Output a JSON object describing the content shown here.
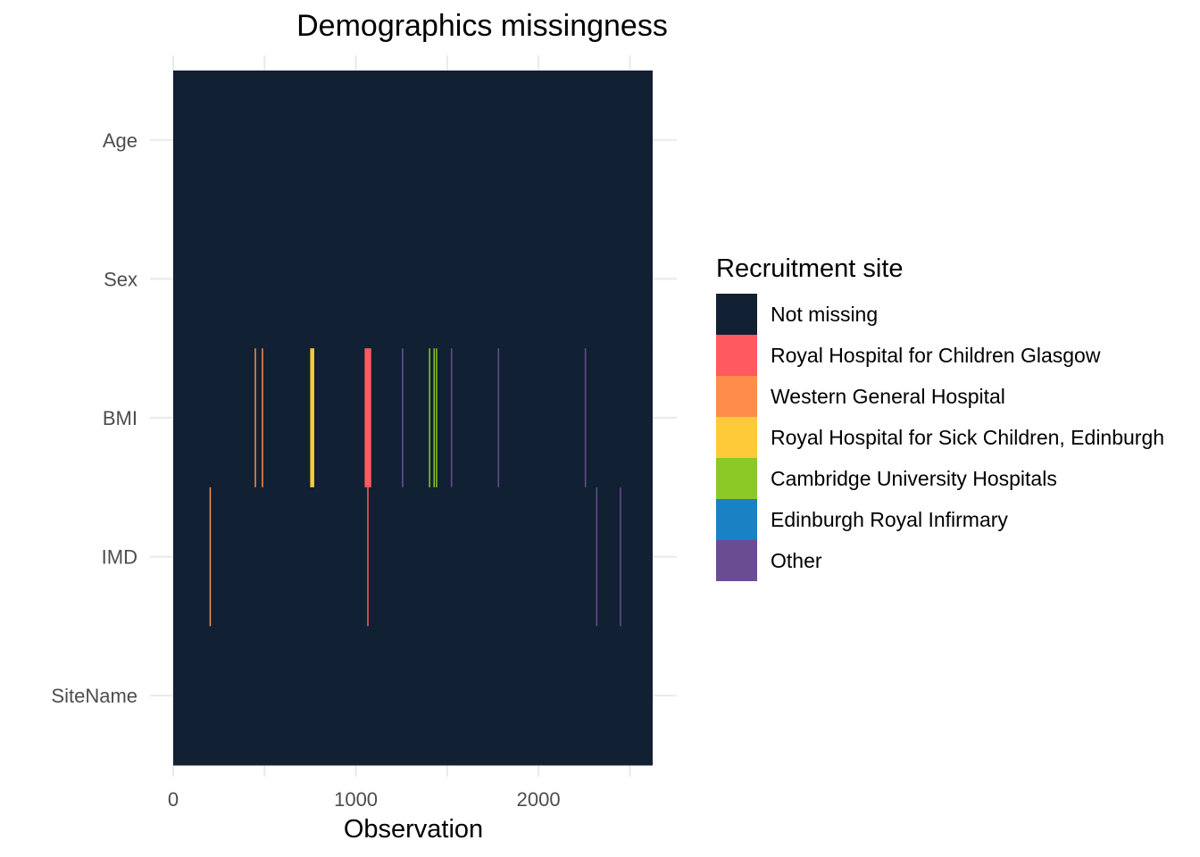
{
  "chart_data": {
    "type": "heatmap",
    "title": "Demographics missingness",
    "xlabel": "Observation",
    "ylabel": "",
    "xlim": [
      0,
      2625
    ],
    "x_ticks": [
      0,
      1000,
      2000
    ],
    "variables": [
      "Age",
      "Sex",
      "BMI",
      "IMD",
      "SiteName"
    ],
    "grid": true,
    "legend": {
      "title": "Recruitment site",
      "position": "right",
      "entries": [
        {
          "label": "Not missing",
          "color": "#112033"
        },
        {
          "label": "Royal Hospital for Children Glasgow",
          "color": "#ff5a5f"
        },
        {
          "label": "Western General Hospital",
          "color": "#ff8c4b"
        },
        {
          "label": "Royal Hospital for Sick Children, Edinburgh",
          "color": "#ffca3a"
        },
        {
          "label": "Cambridge University Hospitals",
          "color": "#8ac926"
        },
        {
          "label": "Edinburgh Royal Infirmary",
          "color": "#1982c4"
        },
        {
          "label": "Other",
          "color": "#6a4c93"
        }
      ]
    },
    "missing_segments": [
      {
        "variable": "BMI",
        "site": "Western General Hospital",
        "x_start": 446,
        "x_end": 452
      },
      {
        "variable": "BMI",
        "site": "Western General Hospital",
        "x_start": 485,
        "x_end": 491
      },
      {
        "variable": "BMI",
        "site": "Royal Hospital for Sick Children, Edinburgh",
        "x_start": 750,
        "x_end": 772
      },
      {
        "variable": "BMI",
        "site": "Royal Hospital for Children Glasgow",
        "x_start": 1048,
        "x_end": 1084
      },
      {
        "variable": "BMI",
        "site": "Other",
        "x_start": 1252,
        "x_end": 1260
      },
      {
        "variable": "BMI",
        "site": "Cambridge University Hospitals",
        "x_start": 1400,
        "x_end": 1406
      },
      {
        "variable": "BMI",
        "site": "Cambridge University Hospitals",
        "x_start": 1425,
        "x_end": 1431
      },
      {
        "variable": "BMI",
        "site": "Cambridge University Hospitals",
        "x_start": 1438,
        "x_end": 1444
      },
      {
        "variable": "BMI",
        "site": "Other",
        "x_start": 1520,
        "x_end": 1526
      },
      {
        "variable": "BMI",
        "site": "Other",
        "x_start": 1777,
        "x_end": 1783
      },
      {
        "variable": "BMI",
        "site": "Other",
        "x_start": 2253,
        "x_end": 2259
      },
      {
        "variable": "IMD",
        "site": "Western General Hospital",
        "x_start": 199,
        "x_end": 205
      },
      {
        "variable": "IMD",
        "site": "Royal Hospital for Children Glasgow",
        "x_start": 1062,
        "x_end": 1068
      },
      {
        "variable": "IMD",
        "site": "Other",
        "x_start": 2315,
        "x_end": 2321
      },
      {
        "variable": "IMD",
        "site": "Other",
        "x_start": 2445,
        "x_end": 2451
      }
    ]
  }
}
